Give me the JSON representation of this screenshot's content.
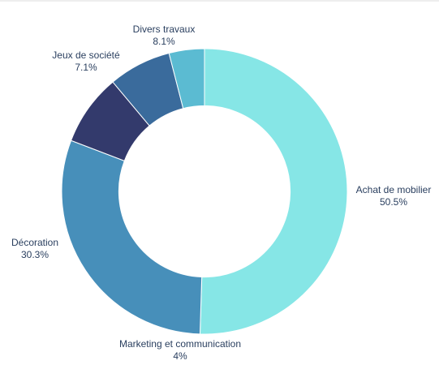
{
  "chart_data": {
    "type": "pie",
    "hole": 0.6,
    "sort": "descending-clockwise",
    "labels": [
      "Achat de mobilier",
      "Décoration",
      "Divers travaux",
      "Jeux de société",
      "Marketing et communication"
    ],
    "values": [
      50.5,
      30.3,
      8.1,
      7.1,
      4.0
    ],
    "percent_text": [
      "50.5%",
      "30.3%",
      "8.1%",
      "7.1%",
      "4%"
    ],
    "colors": [
      "#86e6e6",
      "#478fba",
      "#333a6c",
      "#3a6b9c",
      "#5bbbd2"
    ],
    "label_color": "#2a3f5f"
  }
}
